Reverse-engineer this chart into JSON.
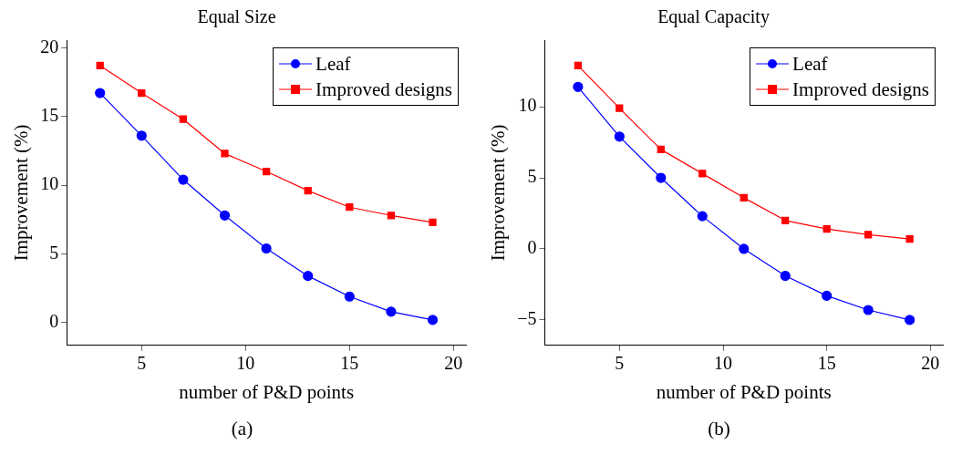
{
  "chart_data": [
    {
      "type": "line",
      "title": "Equal Size",
      "xlabel": "number of P&D points",
      "ylabel": "Improvement (%)",
      "annotations": [
        "(a)"
      ],
      "x": [
        3,
        5,
        7,
        9,
        11,
        13,
        15,
        17,
        19
      ],
      "xlim": [
        1.4,
        20.6
      ],
      "xticks": [
        5,
        10,
        15,
        20
      ],
      "ylim": [
        -1.65,
        20.55
      ],
      "yticks": [
        0,
        5,
        10,
        15,
        20
      ],
      "grid": false,
      "legend": "top right",
      "series": [
        {
          "name": "Leaf",
          "color": "#0000ff",
          "marker": "circle",
          "values": [
            16.7,
            13.6,
            10.4,
            7.8,
            5.4,
            3.4,
            1.9,
            0.8,
            0.2
          ]
        },
        {
          "name": "Improved designs",
          "color": "#ff0000",
          "marker": "square",
          "values": [
            18.7,
            16.7,
            14.8,
            12.3,
            11.0,
            9.6,
            8.4,
            7.8,
            7.3
          ]
        }
      ]
    },
    {
      "type": "line",
      "title": "Equal Capacity",
      "xlabel": "number of P&D points",
      "ylabel": "Improvement (%)",
      "annotations": [
        "(b)"
      ],
      "x": [
        3,
        5,
        7,
        9,
        11,
        13,
        15,
        17,
        19
      ],
      "xlim": [
        1.4,
        20.6
      ],
      "xticks": [
        5,
        10,
        15,
        20
      ],
      "ylim": [
        -6.79,
        14.69
      ],
      "yticks": [
        -5,
        0,
        5,
        10
      ],
      "grid": false,
      "legend": "top right",
      "series": [
        {
          "name": "Leaf",
          "color": "#0000ff",
          "marker": "circle",
          "values": [
            11.4,
            7.9,
            5.0,
            2.3,
            0.0,
            -1.9,
            -3.3,
            -4.3,
            -5.0
          ]
        },
        {
          "name": "Improved designs",
          "color": "#ff0000",
          "marker": "square",
          "values": [
            12.9,
            9.9,
            7.0,
            5.3,
            3.6,
            2.0,
            1.4,
            1.0,
            0.7
          ]
        }
      ]
    }
  ]
}
